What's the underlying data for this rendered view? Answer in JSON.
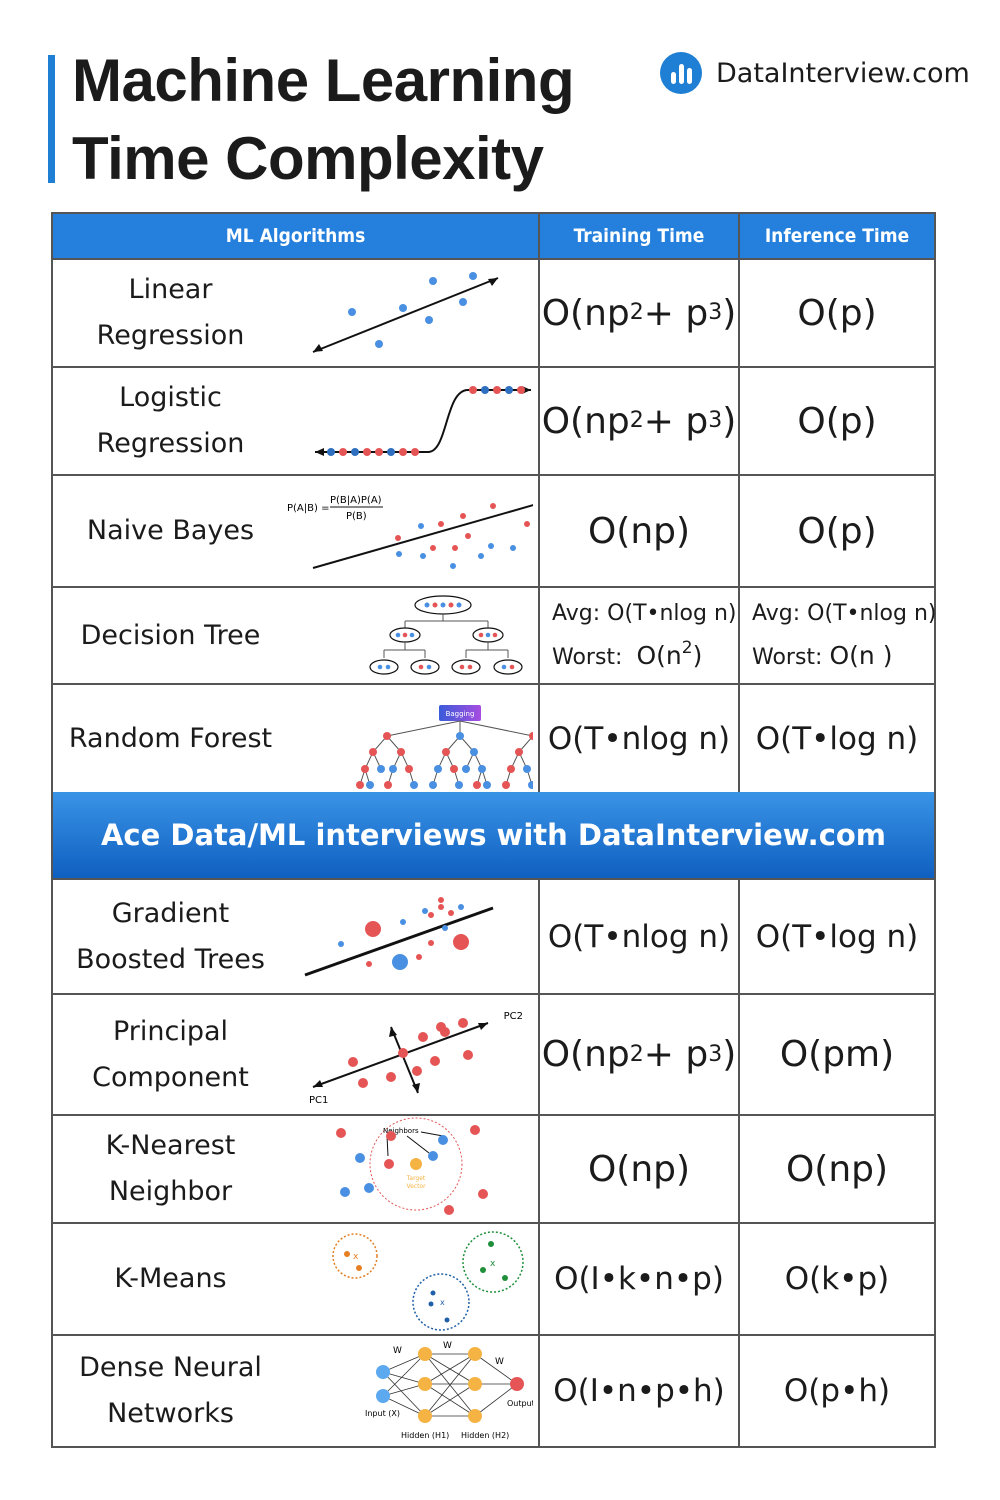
{
  "title": {
    "line1": "Machine Learning",
    "line2": "Time Complexity"
  },
  "brand": {
    "name": "DataInterview.com",
    "color": "#1f7fd4"
  },
  "headers": {
    "algorithms": "ML Algorithms",
    "training": "Training Time",
    "inference": "Inference Time"
  },
  "rows": [
    {
      "name1": "Linear",
      "name2": "Regression",
      "training": {
        "base": "O(np",
        "exp1": "2",
        "mid": "+ p",
        "exp2": "3",
        "end": ")"
      },
      "inference": "O(p)"
    },
    {
      "name1": "Logistic",
      "name2": "Regression",
      "training": {
        "base": "O(np",
        "exp1": "2",
        "mid": "+ p",
        "exp2": "3",
        "end": ")"
      },
      "inference": "O(p)"
    },
    {
      "name1": "Naive Bayes",
      "training": "O(np)",
      "inference": "O(p)",
      "formula_lhs": "P(A|B) =",
      "formula_num": "P(B|A)P(A)",
      "formula_den": "P(B)"
    },
    {
      "name1": "Decision Tree",
      "training_avg_label": "Avg:",
      "training_avg": "O(T•nlog n)",
      "training_worst_label": "Worst:",
      "training_worst_base": "O(n",
      "training_worst_exp": "2",
      "training_worst_end": ")",
      "inference_avg_label": "Avg:",
      "inference_avg": "O(T•nlog n)",
      "inference_worst_label": "Worst:",
      "inference_worst": "O(n )"
    },
    {
      "name1": "Random Forest",
      "training": "O(T•nlog n)",
      "inference": "O(T•log n)",
      "diagram_label": "Bagging"
    }
  ],
  "banner": "Ace Data/ML interviews with DataInterview.com",
  "rows2": [
    {
      "name1": "Gradient",
      "name2": "Boosted Trees",
      "training": "O(T•nlog n)",
      "inference": "O(T•log n)"
    },
    {
      "name1": "Principal",
      "name2": "Component",
      "training": {
        "base": "O(np",
        "exp1": "2",
        "mid": "+ p",
        "exp2": "3",
        "end": ")"
      },
      "inference": "O(pm)",
      "pc1": "PC1",
      "pc2": "PC2"
    },
    {
      "name1": "K-Nearest",
      "name2": "Neighbor",
      "training": "O(np)",
      "inference": "O(np)",
      "neighbors": "Neighbors",
      "target1": "Target",
      "target2": "Vector"
    },
    {
      "name1": "K-Means",
      "training": "O(I•k•n•p)",
      "inference": "O(k•p)"
    },
    {
      "name1": "Dense Neural",
      "name2": "Networks",
      "training": "O(I•n•p•h)",
      "inference": "O(p•h)",
      "input": "Input (X)",
      "h1": "Hidden (H1)",
      "h2": "Hidden (H2)",
      "output": "Output (O)"
    }
  ]
}
